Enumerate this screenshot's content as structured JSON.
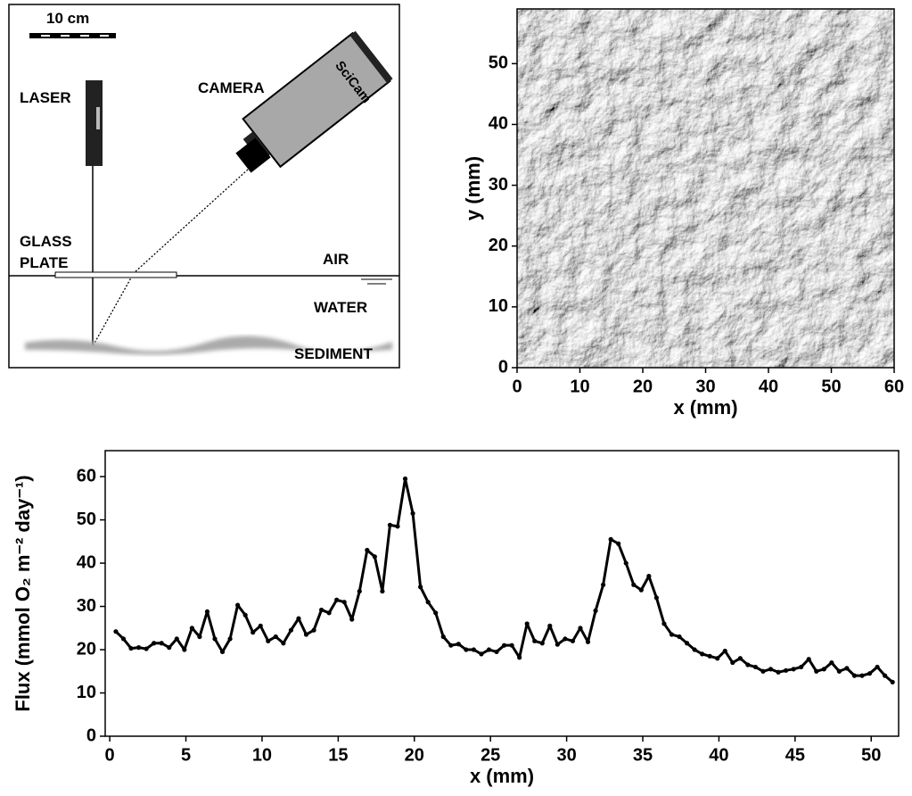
{
  "diagram": {
    "scale_label": "10 cm",
    "laser": "LASER",
    "camera": "CAMERA",
    "camera_brand": "SciCam",
    "glass_1": "GLASS",
    "glass_2": "PLATE",
    "air": "AIR",
    "water": "WATER",
    "sediment": "SEDIMENT"
  },
  "chart_data": [
    {
      "type": "image",
      "xlabel": "x (mm)",
      "ylabel": "y (mm)",
      "xlim": [
        0,
        60
      ],
      "ylim": [
        0,
        59
      ],
      "xticks": [
        0,
        10,
        20,
        30,
        40,
        50,
        60
      ],
      "yticks": [
        0,
        10,
        20,
        30,
        40,
        50
      ]
    },
    {
      "type": "line",
      "xlabel": "x (mm)",
      "ylabel": "Flux (mmol O₂ m⁻² day⁻¹)",
      "xlim": [
        -0.3,
        51.8
      ],
      "ylim": [
        0,
        66
      ],
      "xticks": [
        0,
        5,
        10,
        15,
        20,
        25,
        30,
        35,
        40,
        45,
        50
      ],
      "yticks": [
        0,
        10,
        20,
        30,
        40,
        50,
        60
      ],
      "x": [
        0.4,
        0.9,
        1.4,
        1.9,
        2.4,
        2.9,
        3.4,
        3.9,
        4.4,
        4.9,
        5.4,
        5.9,
        6.4,
        6.9,
        7.4,
        7.9,
        8.4,
        8.9,
        9.4,
        9.9,
        10.4,
        10.9,
        11.4,
        11.9,
        12.4,
        12.9,
        13.4,
        13.9,
        14.4,
        14.9,
        15.4,
        15.9,
        16.4,
        16.9,
        17.4,
        17.9,
        18.4,
        18.9,
        19.4,
        19.9,
        20.4,
        20.9,
        21.4,
        21.9,
        22.4,
        22.9,
        23.4,
        23.9,
        24.4,
        24.9,
        25.4,
        25.9,
        26.4,
        26.9,
        27.4,
        27.9,
        28.4,
        28.9,
        29.4,
        29.9,
        30.4,
        30.9,
        31.4,
        31.9,
        32.4,
        32.9,
        33.4,
        33.9,
        34.4,
        34.9,
        35.4,
        35.9,
        36.4,
        36.9,
        37.4,
        37.9,
        38.4,
        38.9,
        39.4,
        39.9,
        40.4,
        40.9,
        41.4,
        41.9,
        42.4,
        42.9,
        43.4,
        43.9,
        44.4,
        44.9,
        45.4,
        45.9,
        46.4,
        46.9,
        47.4,
        47.9,
        48.4,
        48.9,
        49.4,
        49.9,
        50.4,
        50.9,
        51.4
      ],
      "series": [
        {
          "color": "#000000",
          "values": [
            24.2,
            22.5,
            20.3,
            20.5,
            20.2,
            21.5,
            21.5,
            20.5,
            22.5,
            20,
            25,
            23,
            28.8,
            22.5,
            19.5,
            22.5,
            30.3,
            28,
            24,
            25.5,
            22,
            23,
            21.5,
            24.5,
            27.2,
            23.5,
            24.5,
            29.2,
            28.5,
            31.5,
            31,
            27,
            33.5,
            43,
            41.5,
            33.5,
            48.8,
            48.5,
            59.5,
            51.5,
            34.5,
            31,
            28.5,
            23,
            21,
            21.3,
            20,
            20,
            19,
            20,
            19.5,
            21,
            21,
            18.2,
            26,
            22,
            21.5,
            25.5,
            21.2,
            22.5,
            22,
            25,
            21.8,
            29,
            35,
            45.5,
            44.5,
            40,
            35,
            33.8,
            37,
            32,
            26,
            23.5,
            23,
            21.5,
            20,
            19,
            18.5,
            18,
            19.7,
            17,
            18,
            16.5,
            16,
            15,
            15.5,
            14.8,
            15.2,
            15.5,
            16,
            17.8,
            15,
            15.5,
            17,
            15,
            15.7,
            14,
            14,
            14.5,
            16,
            14,
            12.5
          ]
        }
      ]
    }
  ]
}
